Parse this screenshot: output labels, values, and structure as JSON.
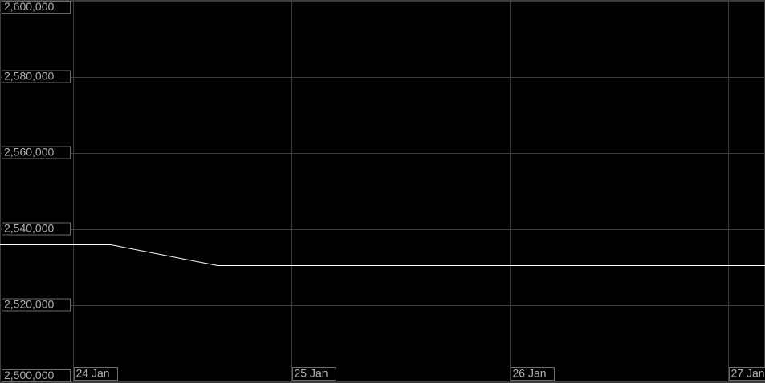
{
  "chart_data": {
    "type": "line",
    "x": [
      23.665,
      24.173,
      24.662,
      27.169
    ],
    "series": [
      {
        "color": "#ffffff",
        "values": [
          2536000,
          2536000,
          2530500,
          2530500
        ]
      }
    ],
    "xlim": [
      23.665,
      27.169
    ],
    "xticks": [
      {
        "value": 24,
        "label": "24 Jan"
      },
      {
        "value": 25,
        "label": "25 Jan"
      },
      {
        "value": 26,
        "label": "26 Jan"
      },
      {
        "value": 27,
        "label": "27 Jan"
      }
    ],
    "ylim": [
      2500000,
      2600000
    ],
    "yticks": [
      {
        "value": 2500000,
        "label": "2,500,000"
      },
      {
        "value": 2520000,
        "label": "2,520,000"
      },
      {
        "value": 2540000,
        "label": "2,540,000"
      },
      {
        "value": 2560000,
        "label": "2,560,000"
      },
      {
        "value": 2580000,
        "label": "2,580,000"
      },
      {
        "value": 2600000,
        "label": "2,600,000"
      }
    ],
    "grid": true
  }
}
